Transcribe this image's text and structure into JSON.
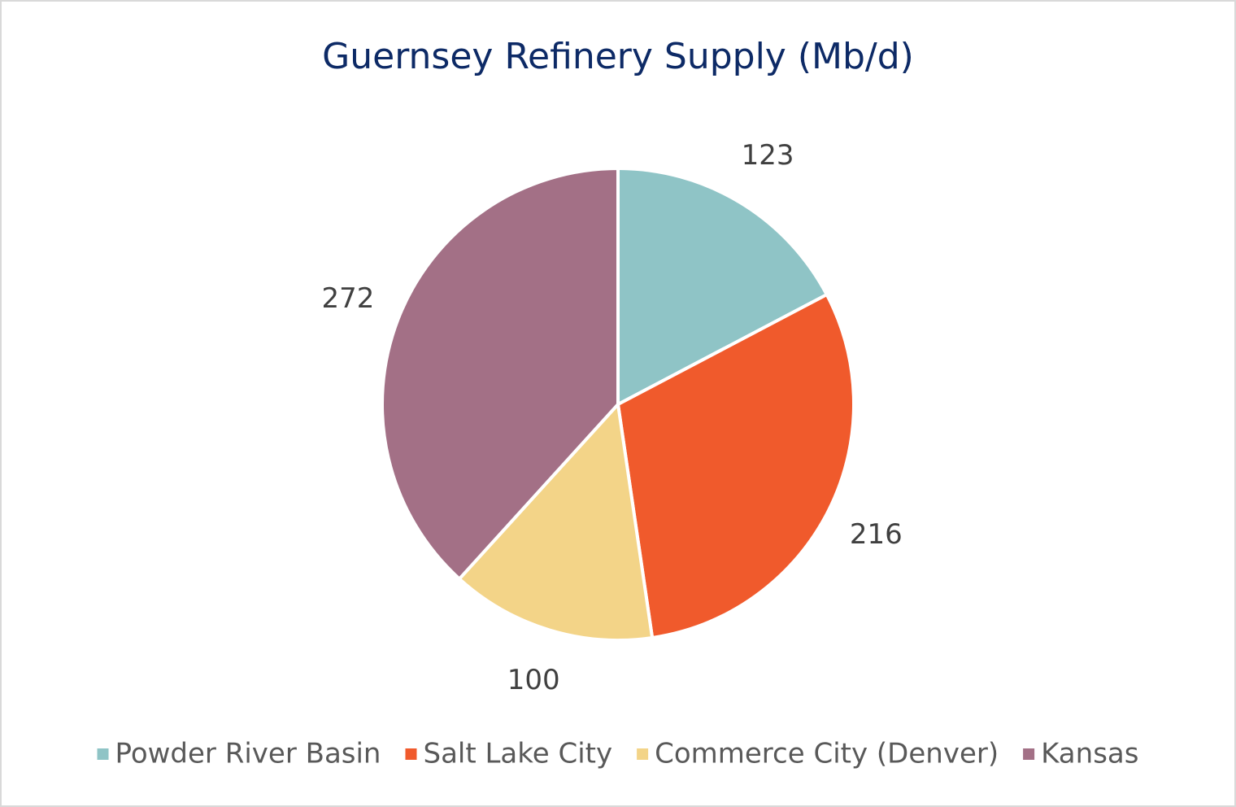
{
  "chart_data": {
    "type": "pie",
    "title": "Guernsey Refinery Supply (Mb/d)",
    "categories": [
      "Powder River Basin",
      "Salt Lake City",
      "Commerce City (Denver)",
      "Kansas"
    ],
    "values": [
      123,
      216,
      100,
      272
    ],
    "colors": [
      "#8fc4c6",
      "#f05a2c",
      "#f3d488",
      "#a37086"
    ],
    "legend": "bottom"
  }
}
